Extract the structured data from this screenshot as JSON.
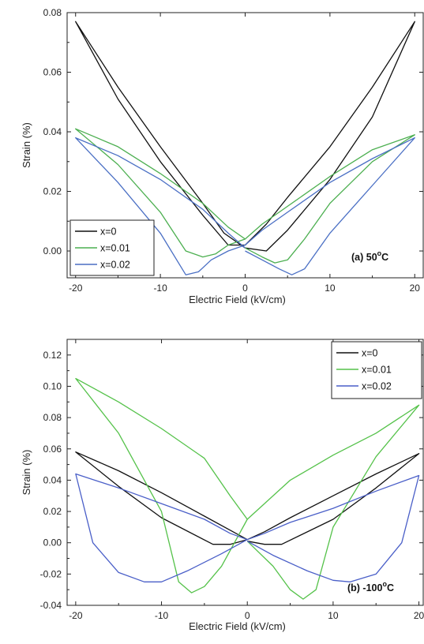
{
  "chart_data": [
    {
      "type": "line",
      "panel": "(a)",
      "annotation": "(a) 50",
      "annotation_sup": "o",
      "annotation_unit": "C",
      "xlabel": "Electric Field (kV/cm)",
      "ylabel": "Strain (%)",
      "xlim": [
        -21,
        21
      ],
      "ylim": [
        -0.009,
        0.08
      ],
      "xticks": [
        -20,
        -10,
        0,
        10,
        20
      ],
      "yticks": [
        0.0,
        0.02,
        0.04,
        0.06,
        0.08
      ],
      "xtick_labels": [
        "-20",
        "-10",
        "0",
        "10",
        "20"
      ],
      "ytick_labels": [
        "0.00",
        "0.02",
        "0.04",
        "0.06",
        "0.08"
      ],
      "legend_position": "bottom-left",
      "grid": false,
      "series": [
        {
          "name": "x=0",
          "color": "#111111",
          "x": [
            0.0,
            2.5,
            5.0,
            10.0,
            15.0,
            20.0,
            15.0,
            10.0,
            5.0,
            2.5,
            0.0,
            -2.0,
            -5.0,
            -10.0,
            -15.0,
            -20.0,
            -15.0,
            -10.0,
            -5.0,
            -2.5,
            0.0
          ],
          "y": [
            0.001,
            0.0,
            0.007,
            0.024,
            0.045,
            0.077,
            0.055,
            0.035,
            0.018,
            0.009,
            0.002,
            0.002,
            0.012,
            0.03,
            0.051,
            0.077,
            0.055,
            0.035,
            0.016,
            0.006,
            0.001
          ]
        },
        {
          "name": "x=0.01",
          "color": "#4caf50",
          "x": [
            0.0,
            2.0,
            3.5,
            5.0,
            7.0,
            10.0,
            15.0,
            20.0,
            15.0,
            10.0,
            5.0,
            2.0,
            0.0,
            -2.0,
            -3.5,
            -5.0,
            -7.0,
            -10.0,
            -15.0,
            -20.0,
            -15.0,
            -10.0,
            -5.0,
            -2.0,
            0.0
          ],
          "y": [
            0.001,
            -0.002,
            -0.004,
            -0.003,
            0.004,
            0.016,
            0.03,
            0.039,
            0.034,
            0.025,
            0.015,
            0.009,
            0.004,
            0.002,
            -0.001,
            -0.002,
            0.0,
            0.013,
            0.029,
            0.041,
            0.035,
            0.026,
            0.016,
            0.008,
            0.004
          ]
        },
        {
          "name": "x=0.02",
          "color": "#4a6fc4",
          "x": [
            0.0,
            2.0,
            4.0,
            5.5,
            7.0,
            10.0,
            15.0,
            20.0,
            15.0,
            10.0,
            5.0,
            2.0,
            0.0,
            -2.0,
            -4.0,
            -5.5,
            -7.0,
            -10.0,
            -15.0,
            -20.0,
            -15.0,
            -10.0,
            -5.0,
            -2.0,
            0.0
          ],
          "y": [
            0.0,
            -0.003,
            -0.006,
            -0.008,
            -0.006,
            0.006,
            0.022,
            0.038,
            0.031,
            0.023,
            0.013,
            0.007,
            0.002,
            0.0,
            -0.003,
            -0.007,
            -0.008,
            0.006,
            0.023,
            0.038,
            0.032,
            0.024,
            0.014,
            0.006,
            0.001
          ]
        }
      ]
    },
    {
      "type": "line",
      "panel": "(b)",
      "annotation": "(b) -100",
      "annotation_sup": "o",
      "annotation_unit": "C",
      "xlabel": "Electric Field (kV/cm)",
      "ylabel": "Strain (%)",
      "xlim": [
        -21,
        20.5
      ],
      "ylim": [
        -0.04,
        0.13
      ],
      "xticks": [
        -20,
        -10,
        0,
        10,
        20
      ],
      "yticks": [
        -0.04,
        -0.02,
        0.0,
        0.02,
        0.04,
        0.06,
        0.08,
        0.1,
        0.12
      ],
      "xtick_labels": [
        "-20",
        "-10",
        "0",
        "10",
        "20"
      ],
      "ytick_labels": [
        "-0.04",
        "-0.02",
        "0.00",
        "0.02",
        "0.04",
        "0.06",
        "0.08",
        "0.10",
        "0.12"
      ],
      "legend_position": "top-right",
      "grid": false,
      "series": [
        {
          "name": "x=0",
          "color": "#111111",
          "x": [
            0.0,
            2.0,
            4.0,
            10.0,
            15.0,
            20.0,
            15.0,
            10.0,
            5.0,
            2.0,
            0.0,
            -2.0,
            -4.0,
            -10.0,
            -15.0,
            -20.0,
            -15.0,
            -10.0,
            -5.0,
            -2.0,
            0.0
          ],
          "y": [
            0.001,
            -0.001,
            -0.001,
            0.015,
            0.035,
            0.057,
            0.044,
            0.03,
            0.016,
            0.007,
            0.002,
            -0.001,
            -0.001,
            0.016,
            0.036,
            0.058,
            0.046,
            0.032,
            0.017,
            0.008,
            0.002
          ]
        },
        {
          "name": "x=0.01",
          "color": "#55c24a",
          "x": [
            0.0,
            3.0,
            5.0,
            6.5,
            8.0,
            10.0,
            15.0,
            20.0,
            15.0,
            10.0,
            5.0,
            2.0,
            0.0,
            -3.0,
            -5.0,
            -6.5,
            -8.0,
            -10.0,
            -15.0,
            -20.0,
            -15.0,
            -10.0,
            -5.0,
            -2.0,
            0.0
          ],
          "y": [
            0.001,
            -0.015,
            -0.03,
            -0.036,
            -0.03,
            0.01,
            0.055,
            0.088,
            0.07,
            0.056,
            0.04,
            0.025,
            0.015,
            -0.015,
            -0.028,
            -0.032,
            -0.025,
            0.02,
            0.07,
            0.105,
            0.09,
            0.073,
            0.054,
            0.03,
            0.015
          ]
        },
        {
          "name": "x=0.02",
          "color": "#4a5fc8",
          "x": [
            0.0,
            3.0,
            7.0,
            10.0,
            12.0,
            15.0,
            18.0,
            20.0,
            15.0,
            10.0,
            5.0,
            2.0,
            0.0,
            -3.0,
            -7.0,
            -10.0,
            -12.0,
            -15.0,
            -18.0,
            -20.0,
            -15.0,
            -10.0,
            -5.0,
            -2.0,
            0.0
          ],
          "y": [
            0.001,
            -0.008,
            -0.018,
            -0.024,
            -0.025,
            -0.02,
            0.0,
            0.043,
            0.033,
            0.022,
            0.013,
            0.006,
            0.002,
            -0.007,
            -0.018,
            -0.025,
            -0.025,
            -0.019,
            0.0,
            0.044,
            0.035,
            0.025,
            0.015,
            0.006,
            0.002
          ]
        }
      ]
    }
  ]
}
